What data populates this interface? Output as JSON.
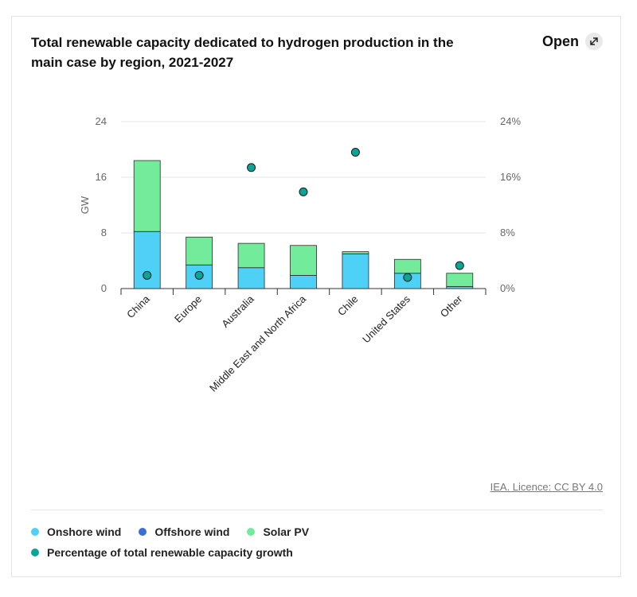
{
  "header": {
    "title": "Total renewable capacity dedicated to hydrogen production in the main case by region, 2021-2027",
    "open_label": "Open",
    "open_icon": "expand-arrows-icon"
  },
  "source": {
    "licence": "IEA. Licence: CC BY 4.0"
  },
  "colors": {
    "onshore": "#4fd1f7",
    "offshore": "#3b6fd6",
    "solar": "#72ec9a",
    "percentage": "#0aa596",
    "bar_outline": "#2b2b2b",
    "grid": "#e6e6e6"
  },
  "chart_data": {
    "type": "bar",
    "stacked": true,
    "title": "Total renewable capacity dedicated to hydrogen production in the main case by region, 2021-2027",
    "ylabel": "GW",
    "ylim": [
      0,
      24
    ],
    "yticks": [
      0,
      8,
      16,
      24
    ],
    "y2lim": [
      0,
      24
    ],
    "y2ticks": [
      "0%",
      "8%",
      "16%",
      "24%"
    ],
    "grid": true,
    "legend_position": "bottom",
    "categories": [
      "China",
      "Europe",
      "Australia",
      "Middle East and North Africa",
      "Chile",
      "United States",
      "Other"
    ],
    "series": [
      {
        "name": "Onshore wind",
        "type": "bar",
        "axis": "left",
        "values": [
          8.2,
          3.4,
          3.0,
          1.9,
          5.0,
          2.2,
          0.3
        ]
      },
      {
        "name": "Offshore wind",
        "type": "bar",
        "axis": "left",
        "values": [
          0,
          0,
          0,
          0,
          0,
          0,
          0
        ]
      },
      {
        "name": "Solar PV",
        "type": "bar",
        "axis": "left",
        "values": [
          10.2,
          4.0,
          3.5,
          4.3,
          0.3,
          2.0,
          1.9
        ]
      },
      {
        "name": "Percentage of total renewable capacity growth",
        "type": "scatter",
        "axis": "right",
        "unit": "%",
        "values": [
          1.9,
          1.9,
          17.4,
          13.9,
          19.6,
          1.6,
          3.3
        ]
      }
    ]
  },
  "legend": {
    "items": [
      {
        "label": "Onshore wind",
        "color": "#4fd1f7"
      },
      {
        "label": "Offshore wind",
        "color": "#3b6fd6"
      },
      {
        "label": "Solar PV",
        "color": "#72ec9a"
      },
      {
        "label": "Percentage of total renewable capacity growth",
        "color": "#0aa596"
      }
    ]
  }
}
